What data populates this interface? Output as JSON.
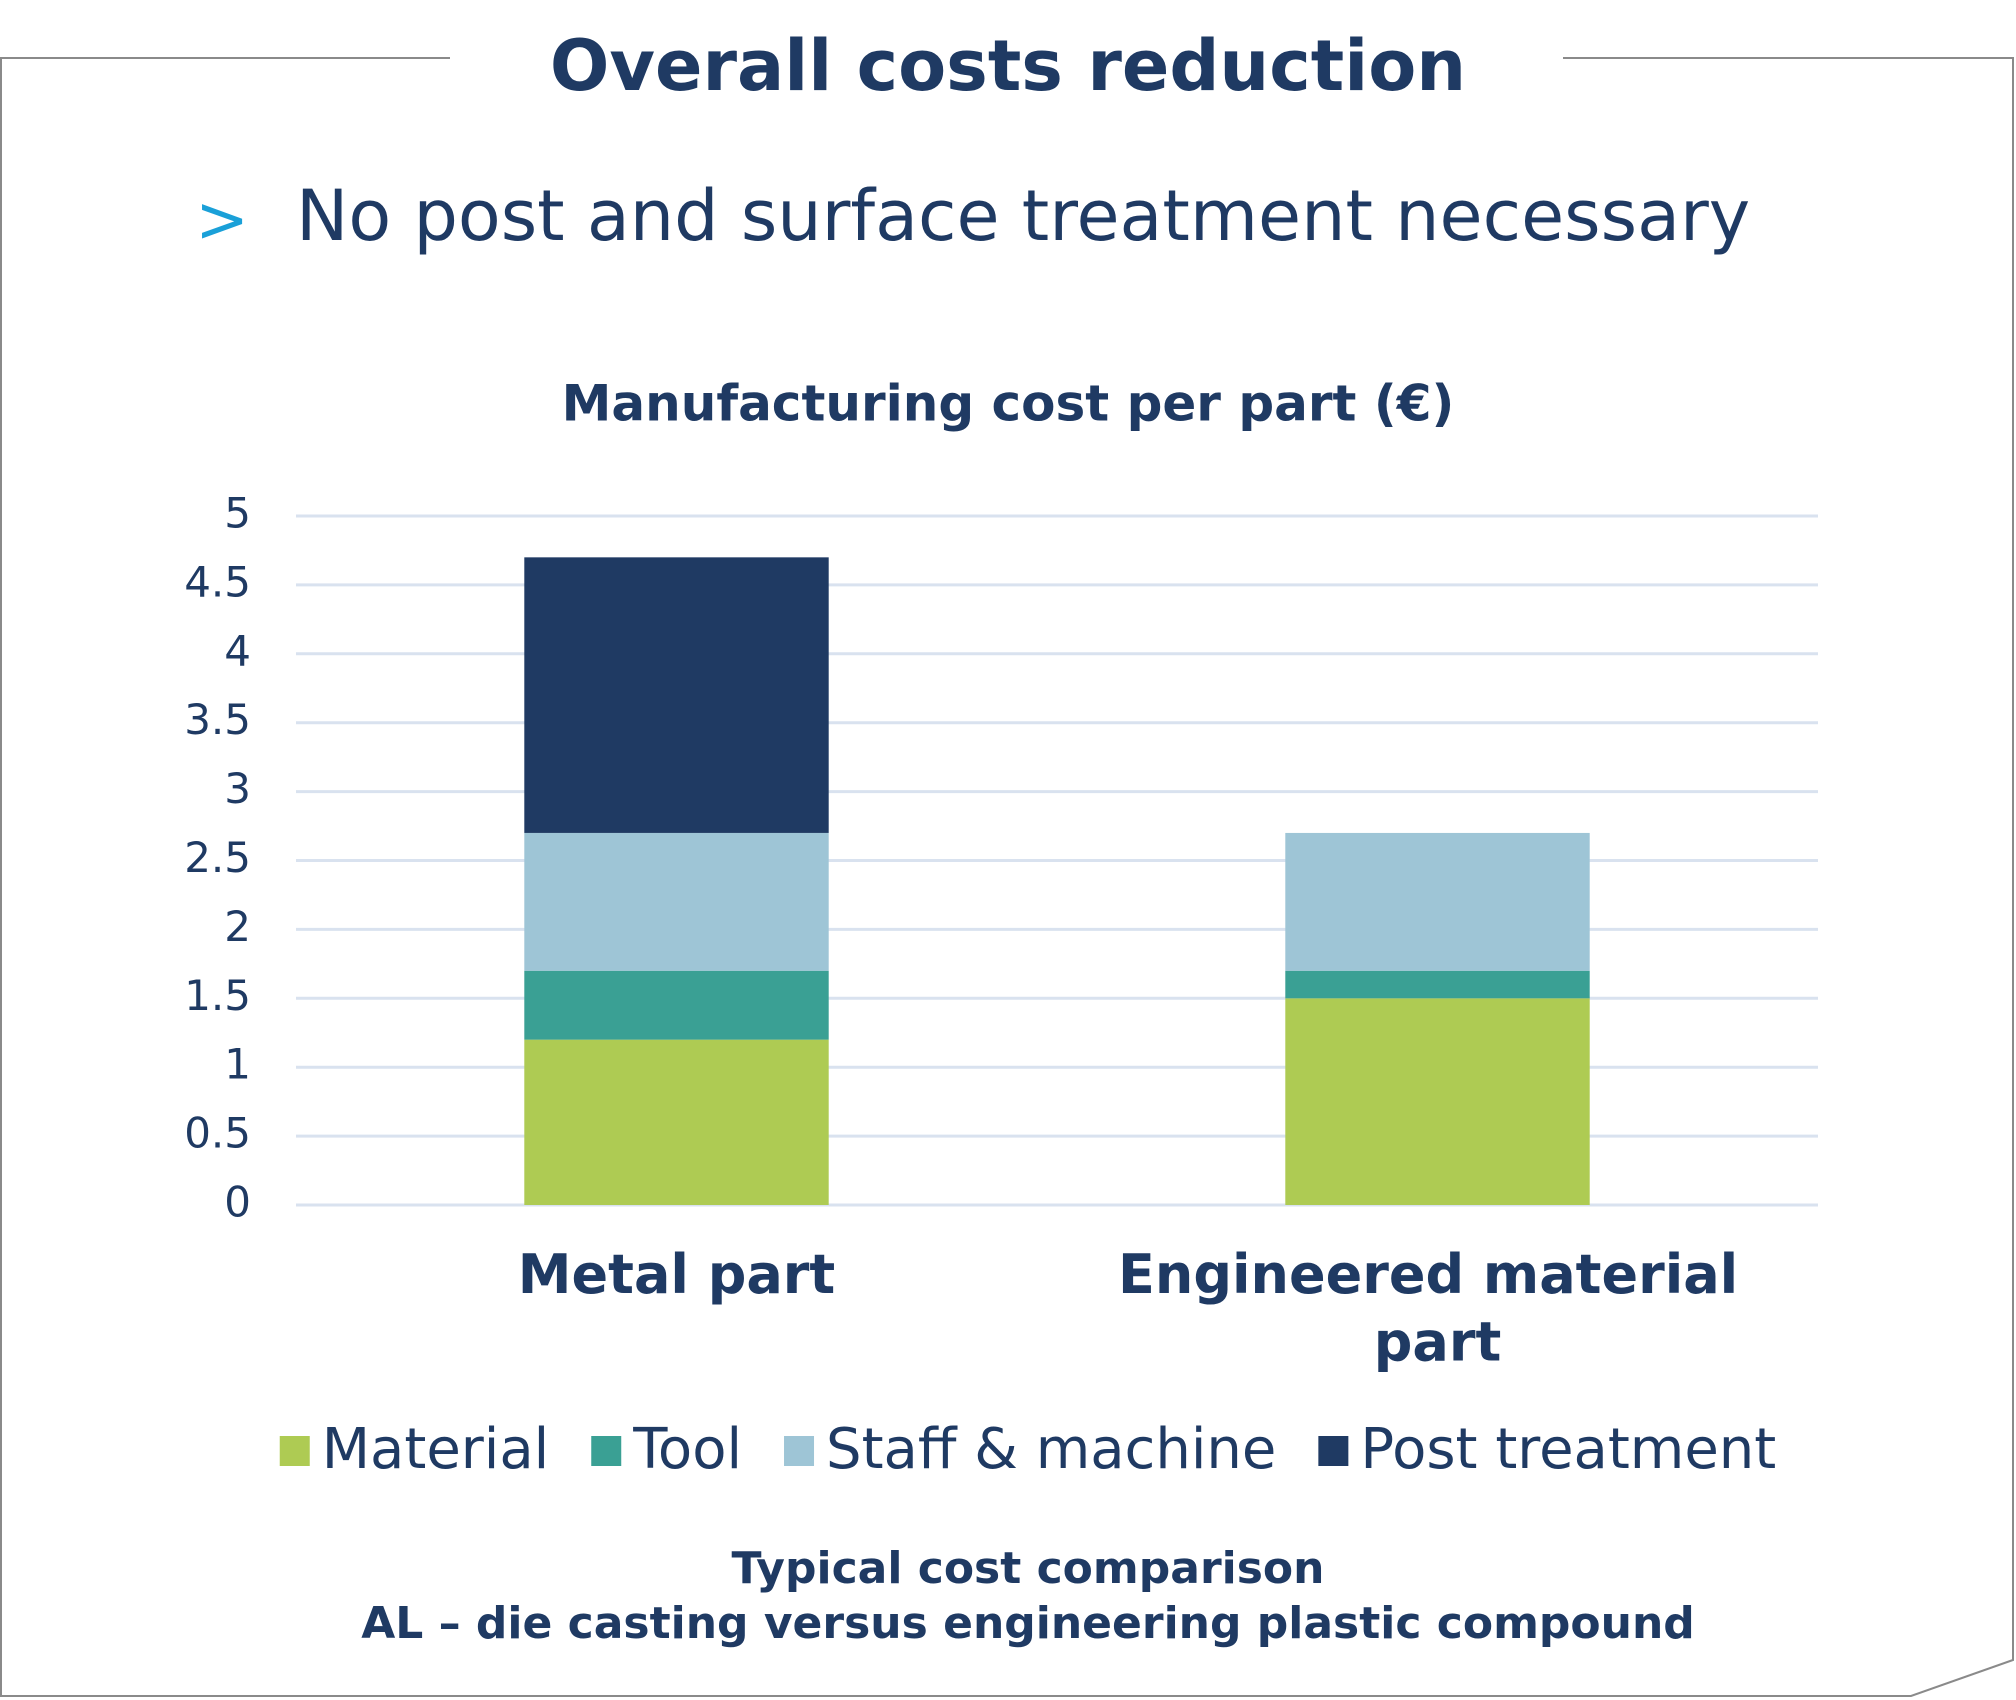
{
  "header": {
    "title": "Overall costs reduction",
    "bullet_marker": ">",
    "bullet_text": "No post and surface treatment necessary"
  },
  "chart_data": {
    "type": "stacked_bar",
    "title": "Manufacturing cost per part (€)",
    "categories": [
      "Metal part",
      "Engineered material part"
    ],
    "series": [
      {
        "name": "Material",
        "color": "#aecb53",
        "values": [
          1.2,
          1.5
        ]
      },
      {
        "name": "Tool",
        "color": "#3aa094",
        "values": [
          0.5,
          0.2
        ]
      },
      {
        "name": "Staff & machine",
        "color": "#9ec5d6",
        "values": [
          1.0,
          1.0
        ]
      },
      {
        "name": "Post treatment",
        "color": "#1f3a63",
        "values": [
          2.0,
          0
        ]
      }
    ],
    "ylim": [
      0,
      5
    ],
    "yticks": [
      0,
      0.5,
      1,
      1.5,
      2,
      2.5,
      3,
      3.5,
      4,
      4.5,
      5
    ],
    "grid": true,
    "legend": "bottom"
  },
  "footnote": [
    "Typical cost comparison",
    "AL – die casting versus engineering plastic compound"
  ]
}
